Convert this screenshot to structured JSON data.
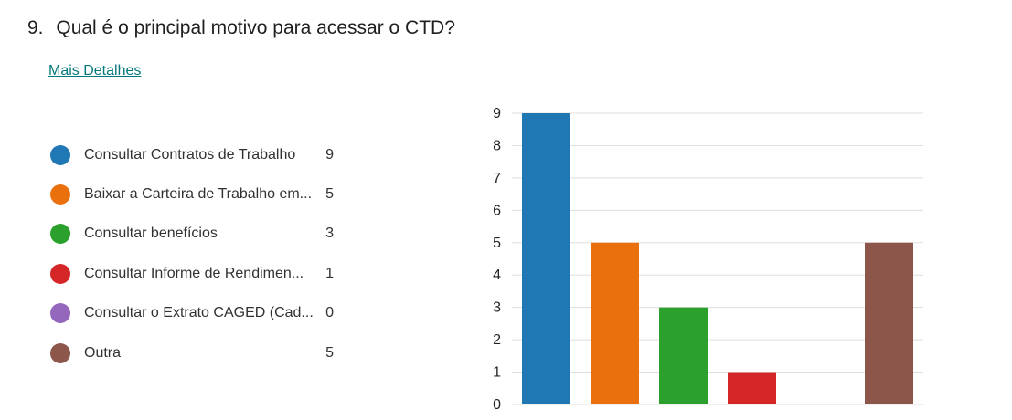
{
  "question": {
    "number": "9.",
    "title": "Qual é o principal motivo para acessar o CTD?"
  },
  "details_link": "Mais Detalhes",
  "legend": [
    {
      "label": "Consultar Contratos de Trabalho",
      "count": "9",
      "color": "#1f77b4"
    },
    {
      "label": "Baixar a Carteira de Trabalho em...",
      "count": "5",
      "color": "#ea700d"
    },
    {
      "label": "Consultar benefícios",
      "count": "3",
      "color": "#2ca02c"
    },
    {
      "label": "Consultar Informe de Rendimen...",
      "count": "1",
      "color": "#d62728"
    },
    {
      "label": "Consultar o Extrato CAGED (Cad...",
      "count": "0",
      "color": "#9467bd"
    },
    {
      "label": "Outra",
      "count": "5",
      "color": "#8c564b"
    }
  ],
  "chart_data": {
    "type": "bar",
    "categories": [
      "Consultar Contratos de Trabalho",
      "Baixar a Carteira de Trabalho em...",
      "Consultar benefícios",
      "Consultar Informe de Rendimen...",
      "Consultar o Extrato CAGED (Cad...",
      "Outra"
    ],
    "values": [
      9,
      5,
      3,
      1,
      0,
      5
    ],
    "colors": [
      "#1f77b4",
      "#ea700d",
      "#2ca02c",
      "#d62728",
      "#9467bd",
      "#8c564b"
    ],
    "ylim": [
      0,
      9
    ],
    "yticks": [
      "0",
      "1",
      "2",
      "3",
      "4",
      "5",
      "6",
      "7",
      "8",
      "9"
    ],
    "grid": true,
    "title": "",
    "xlabel": "",
    "ylabel": ""
  }
}
